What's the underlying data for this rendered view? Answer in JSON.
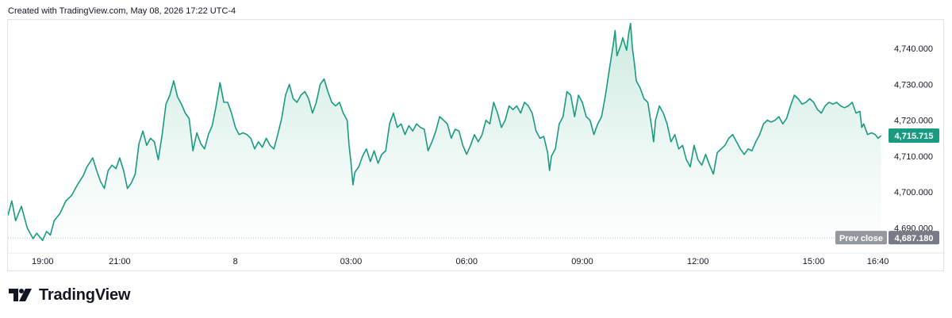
{
  "header": {
    "created_note": "Created with TradingView.com, May 08, 2026 17:22 UTC-4"
  },
  "brand": {
    "name": "TradingView",
    "logo_icon": "tradingview-logo-icon"
  },
  "colors": {
    "line": "#1a9a80",
    "area_top": "#c8e9df",
    "area_bottom": "#ffffff",
    "last_badge": "#1a9a80",
    "prev_badge": "#787b86",
    "prev_label_bg": "#9598a1"
  },
  "chart_data": {
    "type": "area",
    "ylim": [
      4683,
      4748
    ],
    "y_ticks": [
      4690,
      4700,
      4710,
      4720,
      4730,
      4740
    ],
    "y_tick_labels": [
      "4,690.000",
      "4,700.000",
      "4,710.000",
      "4,720.000",
      "4,730.000",
      "4,740.000"
    ],
    "x_ticks": [
      {
        "t": 7.0,
        "label": "19:00"
      },
      {
        "t": 9.0,
        "label": "21:00"
      },
      {
        "t": 12.0,
        "label": "8"
      },
      {
        "t": 15.0,
        "label": "03:00"
      },
      {
        "t": 18.0,
        "label": "06:00"
      },
      {
        "t": 21.0,
        "label": "09:00"
      },
      {
        "t": 24.0,
        "label": "12:00"
      },
      {
        "t": 27.0,
        "label": "15:00"
      },
      {
        "t": 28.667,
        "label": "16:40"
      }
    ],
    "xlim": [
      6.1,
      28.82
    ],
    "series": [
      {
        "points": [
          [
            6.1,
            4693.5
          ],
          [
            6.2,
            4697.5
          ],
          [
            6.3,
            4692.0
          ],
          [
            6.45,
            4696.0
          ],
          [
            6.6,
            4690.0
          ],
          [
            6.75,
            4687.0
          ],
          [
            6.85,
            4688.5
          ],
          [
            7.0,
            4686.5
          ],
          [
            7.1,
            4689.0
          ],
          [
            7.2,
            4688.0
          ],
          [
            7.3,
            4692.0
          ],
          [
            7.45,
            4694.0
          ],
          [
            7.6,
            4697.5
          ],
          [
            7.75,
            4699.0
          ],
          [
            7.9,
            4702.0
          ],
          [
            8.05,
            4704.5
          ],
          [
            8.15,
            4707.0
          ],
          [
            8.3,
            4709.5
          ],
          [
            8.4,
            4706.0
          ],
          [
            8.5,
            4703.0
          ],
          [
            8.6,
            4701.0
          ],
          [
            8.7,
            4706.0
          ],
          [
            8.8,
            4707.5
          ],
          [
            8.9,
            4706.5
          ],
          [
            9.0,
            4709.5
          ],
          [
            9.1,
            4706.0
          ],
          [
            9.2,
            4701.0
          ],
          [
            9.3,
            4702.5
          ],
          [
            9.4,
            4705.0
          ],
          [
            9.5,
            4713.5
          ],
          [
            9.6,
            4717.0
          ],
          [
            9.7,
            4713.0
          ],
          [
            9.8,
            4715.0
          ],
          [
            9.9,
            4714.0
          ],
          [
            10.0,
            4709.0
          ],
          [
            10.1,
            4716.0
          ],
          [
            10.2,
            4724.5
          ],
          [
            10.3,
            4727.0
          ],
          [
            10.4,
            4731.0
          ],
          [
            10.5,
            4726.5
          ],
          [
            10.6,
            4724.5
          ],
          [
            10.7,
            4722.0
          ],
          [
            10.8,
            4720.5
          ],
          [
            10.9,
            4711.5
          ],
          [
            11.0,
            4716.5
          ],
          [
            11.1,
            4713.5
          ],
          [
            11.2,
            4712.0
          ],
          [
            11.3,
            4716.0
          ],
          [
            11.4,
            4718.5
          ],
          [
            11.5,
            4724.0
          ],
          [
            11.6,
            4730.5
          ],
          [
            11.7,
            4725.0
          ],
          [
            11.8,
            4725.0
          ],
          [
            11.9,
            4722.0
          ],
          [
            12.0,
            4718.0
          ],
          [
            12.1,
            4716.0
          ],
          [
            12.2,
            4716.5
          ],
          [
            12.3,
            4716.0
          ],
          [
            12.4,
            4715.0
          ],
          [
            12.5,
            4712.0
          ],
          [
            12.6,
            4714.0
          ],
          [
            12.7,
            4712.5
          ],
          [
            12.8,
            4715.0
          ],
          [
            12.9,
            4713.0
          ],
          [
            13.0,
            4712.0
          ],
          [
            13.1,
            4716.0
          ],
          [
            13.2,
            4720.5
          ],
          [
            13.3,
            4727.0
          ],
          [
            13.4,
            4730.0
          ],
          [
            13.5,
            4726.0
          ],
          [
            13.6,
            4725.0
          ],
          [
            13.7,
            4727.0
          ],
          [
            13.8,
            4728.0
          ],
          [
            13.9,
            4726.0
          ],
          [
            14.0,
            4722.0
          ],
          [
            14.1,
            4725.0
          ],
          [
            14.2,
            4730.0
          ],
          [
            14.3,
            4731.5
          ],
          [
            14.4,
            4728.0
          ],
          [
            14.5,
            4725.0
          ],
          [
            14.6,
            4724.0
          ],
          [
            14.7,
            4725.0
          ],
          [
            14.8,
            4722.0
          ],
          [
            14.9,
            4720.0
          ],
          [
            14.95,
            4713.0
          ],
          [
            15.0,
            4708.0
          ],
          [
            15.05,
            4702.0
          ],
          [
            15.1,
            4705.5
          ],
          [
            15.2,
            4707.0
          ],
          [
            15.3,
            4710.0
          ],
          [
            15.4,
            4712.0
          ],
          [
            15.5,
            4708.5
          ],
          [
            15.6,
            4711.5
          ],
          [
            15.7,
            4708.0
          ],
          [
            15.8,
            4710.5
          ],
          [
            15.9,
            4711.5
          ],
          [
            16.0,
            4719.0
          ],
          [
            16.1,
            4722.0
          ],
          [
            16.2,
            4718.0
          ],
          [
            16.3,
            4719.0
          ],
          [
            16.4,
            4716.0
          ],
          [
            16.5,
            4718.5
          ],
          [
            16.6,
            4717.0
          ],
          [
            16.7,
            4719.0
          ],
          [
            16.8,
            4718.0
          ],
          [
            16.9,
            4717.5
          ],
          [
            17.0,
            4711.5
          ],
          [
            17.1,
            4714.0
          ],
          [
            17.2,
            4717.0
          ],
          [
            17.3,
            4721.0
          ],
          [
            17.4,
            4720.0
          ],
          [
            17.5,
            4719.0
          ],
          [
            17.6,
            4715.0
          ],
          [
            17.7,
            4717.5
          ],
          [
            17.8,
            4717.0
          ],
          [
            17.9,
            4713.0
          ],
          [
            18.0,
            4710.5
          ],
          [
            18.1,
            4713.0
          ],
          [
            18.2,
            4716.0
          ],
          [
            18.3,
            4714.0
          ],
          [
            18.4,
            4716.0
          ],
          [
            18.5,
            4720.0
          ],
          [
            18.6,
            4719.0
          ],
          [
            18.7,
            4725.0
          ],
          [
            18.8,
            4722.0
          ],
          [
            18.9,
            4718.0
          ],
          [
            19.0,
            4720.0
          ],
          [
            19.1,
            4724.0
          ],
          [
            19.2,
            4723.0
          ],
          [
            19.3,
            4724.0
          ],
          [
            19.4,
            4722.0
          ],
          [
            19.5,
            4725.0
          ],
          [
            19.6,
            4724.0
          ],
          [
            19.7,
            4722.0
          ],
          [
            19.8,
            4717.0
          ],
          [
            19.9,
            4715.0
          ],
          [
            20.0,
            4715.5
          ],
          [
            20.1,
            4711.0
          ],
          [
            20.15,
            4706.0
          ],
          [
            20.2,
            4710.0
          ],
          [
            20.3,
            4712.0
          ],
          [
            20.4,
            4719.0
          ],
          [
            20.5,
            4721.0
          ],
          [
            20.6,
            4728.0
          ],
          [
            20.7,
            4727.0
          ],
          [
            20.8,
            4721.0
          ],
          [
            20.9,
            4727.0
          ],
          [
            21.0,
            4725.0
          ],
          [
            21.1,
            4721.0
          ],
          [
            21.2,
            4720.0
          ],
          [
            21.3,
            4716.0
          ],
          [
            21.4,
            4719.0
          ],
          [
            21.5,
            4721.0
          ],
          [
            21.6,
            4727.0
          ],
          [
            21.7,
            4734.0
          ],
          [
            21.8,
            4741.0
          ],
          [
            21.85,
            4745.0
          ],
          [
            21.9,
            4738.0
          ],
          [
            22.0,
            4741.0
          ],
          [
            22.05,
            4743.0
          ],
          [
            22.15,
            4739.5
          ],
          [
            22.2,
            4744.0
          ],
          [
            22.25,
            4747.0
          ],
          [
            22.3,
            4740.0
          ],
          [
            22.35,
            4736.0
          ],
          [
            22.4,
            4731.0
          ],
          [
            22.5,
            4729.0
          ],
          [
            22.6,
            4726.0
          ],
          [
            22.7,
            4725.0
          ],
          [
            22.8,
            4718.0
          ],
          [
            22.85,
            4714.0
          ],
          [
            22.9,
            4720.0
          ],
          [
            23.0,
            4724.0
          ],
          [
            23.1,
            4722.0
          ],
          [
            23.2,
            4719.0
          ],
          [
            23.3,
            4714.0
          ],
          [
            23.4,
            4716.0
          ],
          [
            23.5,
            4712.0
          ],
          [
            23.6,
            4713.0
          ],
          [
            23.7,
            4709.0
          ],
          [
            23.8,
            4707.0
          ],
          [
            23.9,
            4713.0
          ],
          [
            24.0,
            4709.0
          ],
          [
            24.1,
            4707.5
          ],
          [
            24.2,
            4710.5
          ],
          [
            24.3,
            4707.5
          ],
          [
            24.4,
            4705.0
          ],
          [
            24.5,
            4711.0
          ],
          [
            24.6,
            4712.0
          ],
          [
            24.7,
            4713.0
          ],
          [
            24.8,
            4715.0
          ],
          [
            24.9,
            4716.0
          ],
          [
            25.0,
            4714.0
          ],
          [
            25.1,
            4712.0
          ],
          [
            25.2,
            4710.5
          ],
          [
            25.3,
            4712.0
          ],
          [
            25.4,
            4711.5
          ],
          [
            25.5,
            4714.0
          ],
          [
            25.6,
            4716.0
          ],
          [
            25.7,
            4719.0
          ],
          [
            25.8,
            4720.0
          ],
          [
            25.9,
            4719.5
          ],
          [
            26.0,
            4720.0
          ],
          [
            26.1,
            4721.0
          ],
          [
            26.2,
            4719.0
          ],
          [
            26.3,
            4720.5
          ],
          [
            26.4,
            4724.0
          ],
          [
            26.5,
            4727.0
          ],
          [
            26.6,
            4726.0
          ],
          [
            26.7,
            4724.5
          ],
          [
            26.8,
            4725.0
          ],
          [
            26.9,
            4726.0
          ],
          [
            27.0,
            4725.0
          ],
          [
            27.1,
            4723.0
          ],
          [
            27.2,
            4722.0
          ],
          [
            27.3,
            4724.0
          ],
          [
            27.4,
            4725.0
          ],
          [
            27.5,
            4724.5
          ],
          [
            27.6,
            4725.0
          ],
          [
            27.7,
            4724.0
          ],
          [
            27.8,
            4723.5
          ],
          [
            27.9,
            4724.0
          ],
          [
            28.0,
            4725.0
          ],
          [
            28.1,
            4722.0
          ],
          [
            28.2,
            4722.5
          ],
          [
            28.25,
            4718.0
          ],
          [
            28.3,
            4719.0
          ],
          [
            28.4,
            4716.0
          ],
          [
            28.5,
            4716.5
          ],
          [
            28.6,
            4716.0
          ],
          [
            28.67,
            4715.0
          ],
          [
            28.75,
            4715.7
          ]
        ]
      }
    ],
    "last_value": 4715.715,
    "last_value_label": "4,715.715",
    "prev_close": 4687.18,
    "prev_close_value_label": "4,687.180",
    "prev_close_label": "Prev close"
  }
}
